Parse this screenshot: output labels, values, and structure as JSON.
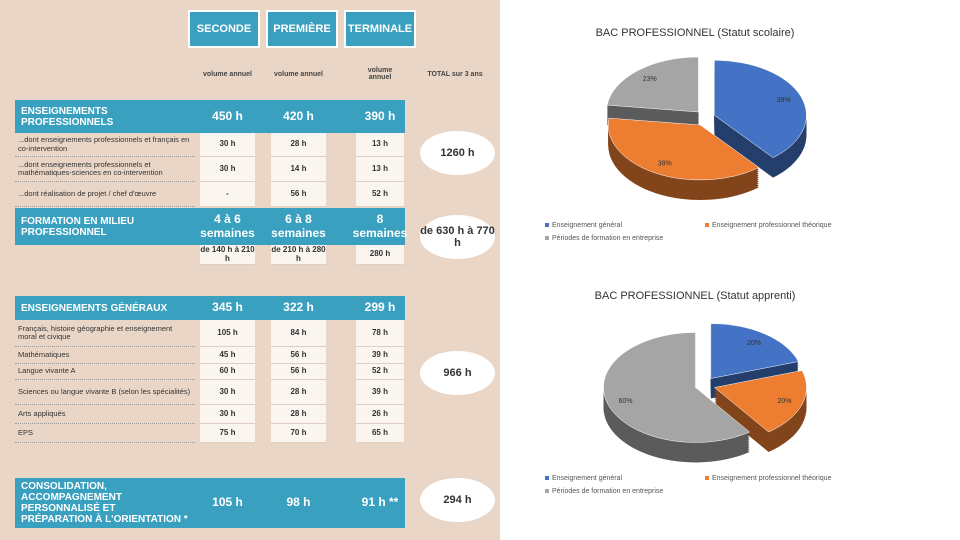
{
  "table": {
    "columns": [
      "SECONDE",
      "PREMIÈRE",
      "TERMINALE"
    ],
    "subheaders": [
      "volume annuel",
      "volume annuel",
      "volume annuel",
      "TOTAL sur 3 ans"
    ],
    "sections": [
      {
        "title": "ENSEIGNEMENTS PROFESSIONNELS",
        "cells": [
          "450 h",
          "420 h",
          "390 h"
        ],
        "total": "1260 h",
        "rows": [
          {
            "label": "...dont enseignements professionnels et français en co-intervention",
            "cells": [
              "30 h",
              "28 h",
              "13 h"
            ]
          },
          {
            "label": "...dont enseignements professionnels et mathématiques-sciences en co-intervention",
            "cells": [
              "30 h",
              "14 h",
              "13 h"
            ]
          },
          {
            "label": "...dont réalisation de projet / chef d'œuvre",
            "cells": [
              "-",
              "56 h",
              "52 h"
            ]
          }
        ]
      },
      {
        "title": "FORMATION EN MILIEU PROFESSIONNEL",
        "cells": [
          "4 à 6 semaines",
          "6 à 8 semaines",
          "8 semaines"
        ],
        "total": "de 630 h à 770 h",
        "rows": [
          {
            "cells": [
              "de 140 h à 210 h",
              "de 210 h à 280 h",
              "280 h"
            ]
          }
        ]
      },
      {
        "title": "ENSEIGNEMENTS GÉNÉRAUX",
        "cells": [
          "345 h",
          "322 h",
          "299 h"
        ],
        "total": "966 h",
        "rows": [
          {
            "label": "Français, histoire géographie et enseignement moral et civique",
            "cells": [
              "105 h",
              "84 h",
              "78 h"
            ]
          },
          {
            "label": "Mathématiques",
            "cells": [
              "45 h",
              "56 h",
              "39 h"
            ]
          },
          {
            "label": "Langue vivante A",
            "cells": [
              "60 h",
              "56 h",
              "52 h"
            ]
          },
          {
            "label": "Sciences ou langue vivante B (selon les spécialités)",
            "cells": [
              "30 h",
              "28 h",
              "39 h"
            ]
          },
          {
            "label": "Arts appliqués",
            "cells": [
              "30 h",
              "28 h",
              "26 h"
            ]
          },
          {
            "label": "EPS",
            "cells": [
              "75 h",
              "70 h",
              "65 h"
            ]
          }
        ]
      },
      {
        "title": "CONSOLIDATION, ACCOMPAGNEMENT PERSONNALISÉ ET PRÉPARATION À L'ORIENTATION *",
        "cells": [
          "105 h",
          "98 h",
          "91 h **"
        ],
        "total": "294 h",
        "rows": []
      }
    ]
  },
  "chart_data": [
    {
      "type": "pie",
      "title": "BAC PROFESSIONNEL (Statut scolaire)",
      "categories": [
        "Enseignement général",
        "Enseignement professionnel théorique",
        "Périodes de formation en entreprise"
      ],
      "values": [
        39,
        38,
        23
      ],
      "value_labels": [
        "39%",
        "38%",
        "23%"
      ],
      "colors": [
        "#4472c4",
        "#ed7d31",
        "#a5a5a5"
      ]
    },
    {
      "type": "pie",
      "title": "BAC PROFESSIONNEL (Statut apprenti)",
      "categories": [
        "Enseignement général",
        "Enseignement professionnel théorique",
        "Périodes de formation en entreprise"
      ],
      "values": [
        20,
        20,
        60
      ],
      "value_labels": [
        "20%",
        "20%",
        "60%"
      ],
      "colors": [
        "#4472c4",
        "#ed7d31",
        "#a5a5a5"
      ]
    }
  ]
}
